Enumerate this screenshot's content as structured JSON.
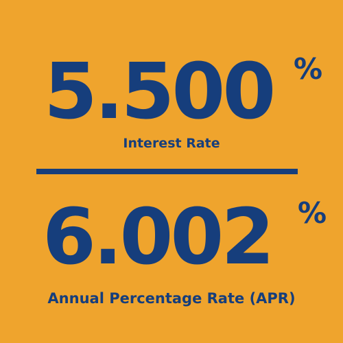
{
  "interest_rate": {
    "value": "5.500",
    "percent_sign": "%",
    "label": "Interest Rate"
  },
  "apr": {
    "value": "6.002",
    "percent_sign": "%",
    "label": "Annual Percentage Rate (APR)"
  },
  "colors": {
    "background": "#EFA42D",
    "text": "#163E7C"
  }
}
